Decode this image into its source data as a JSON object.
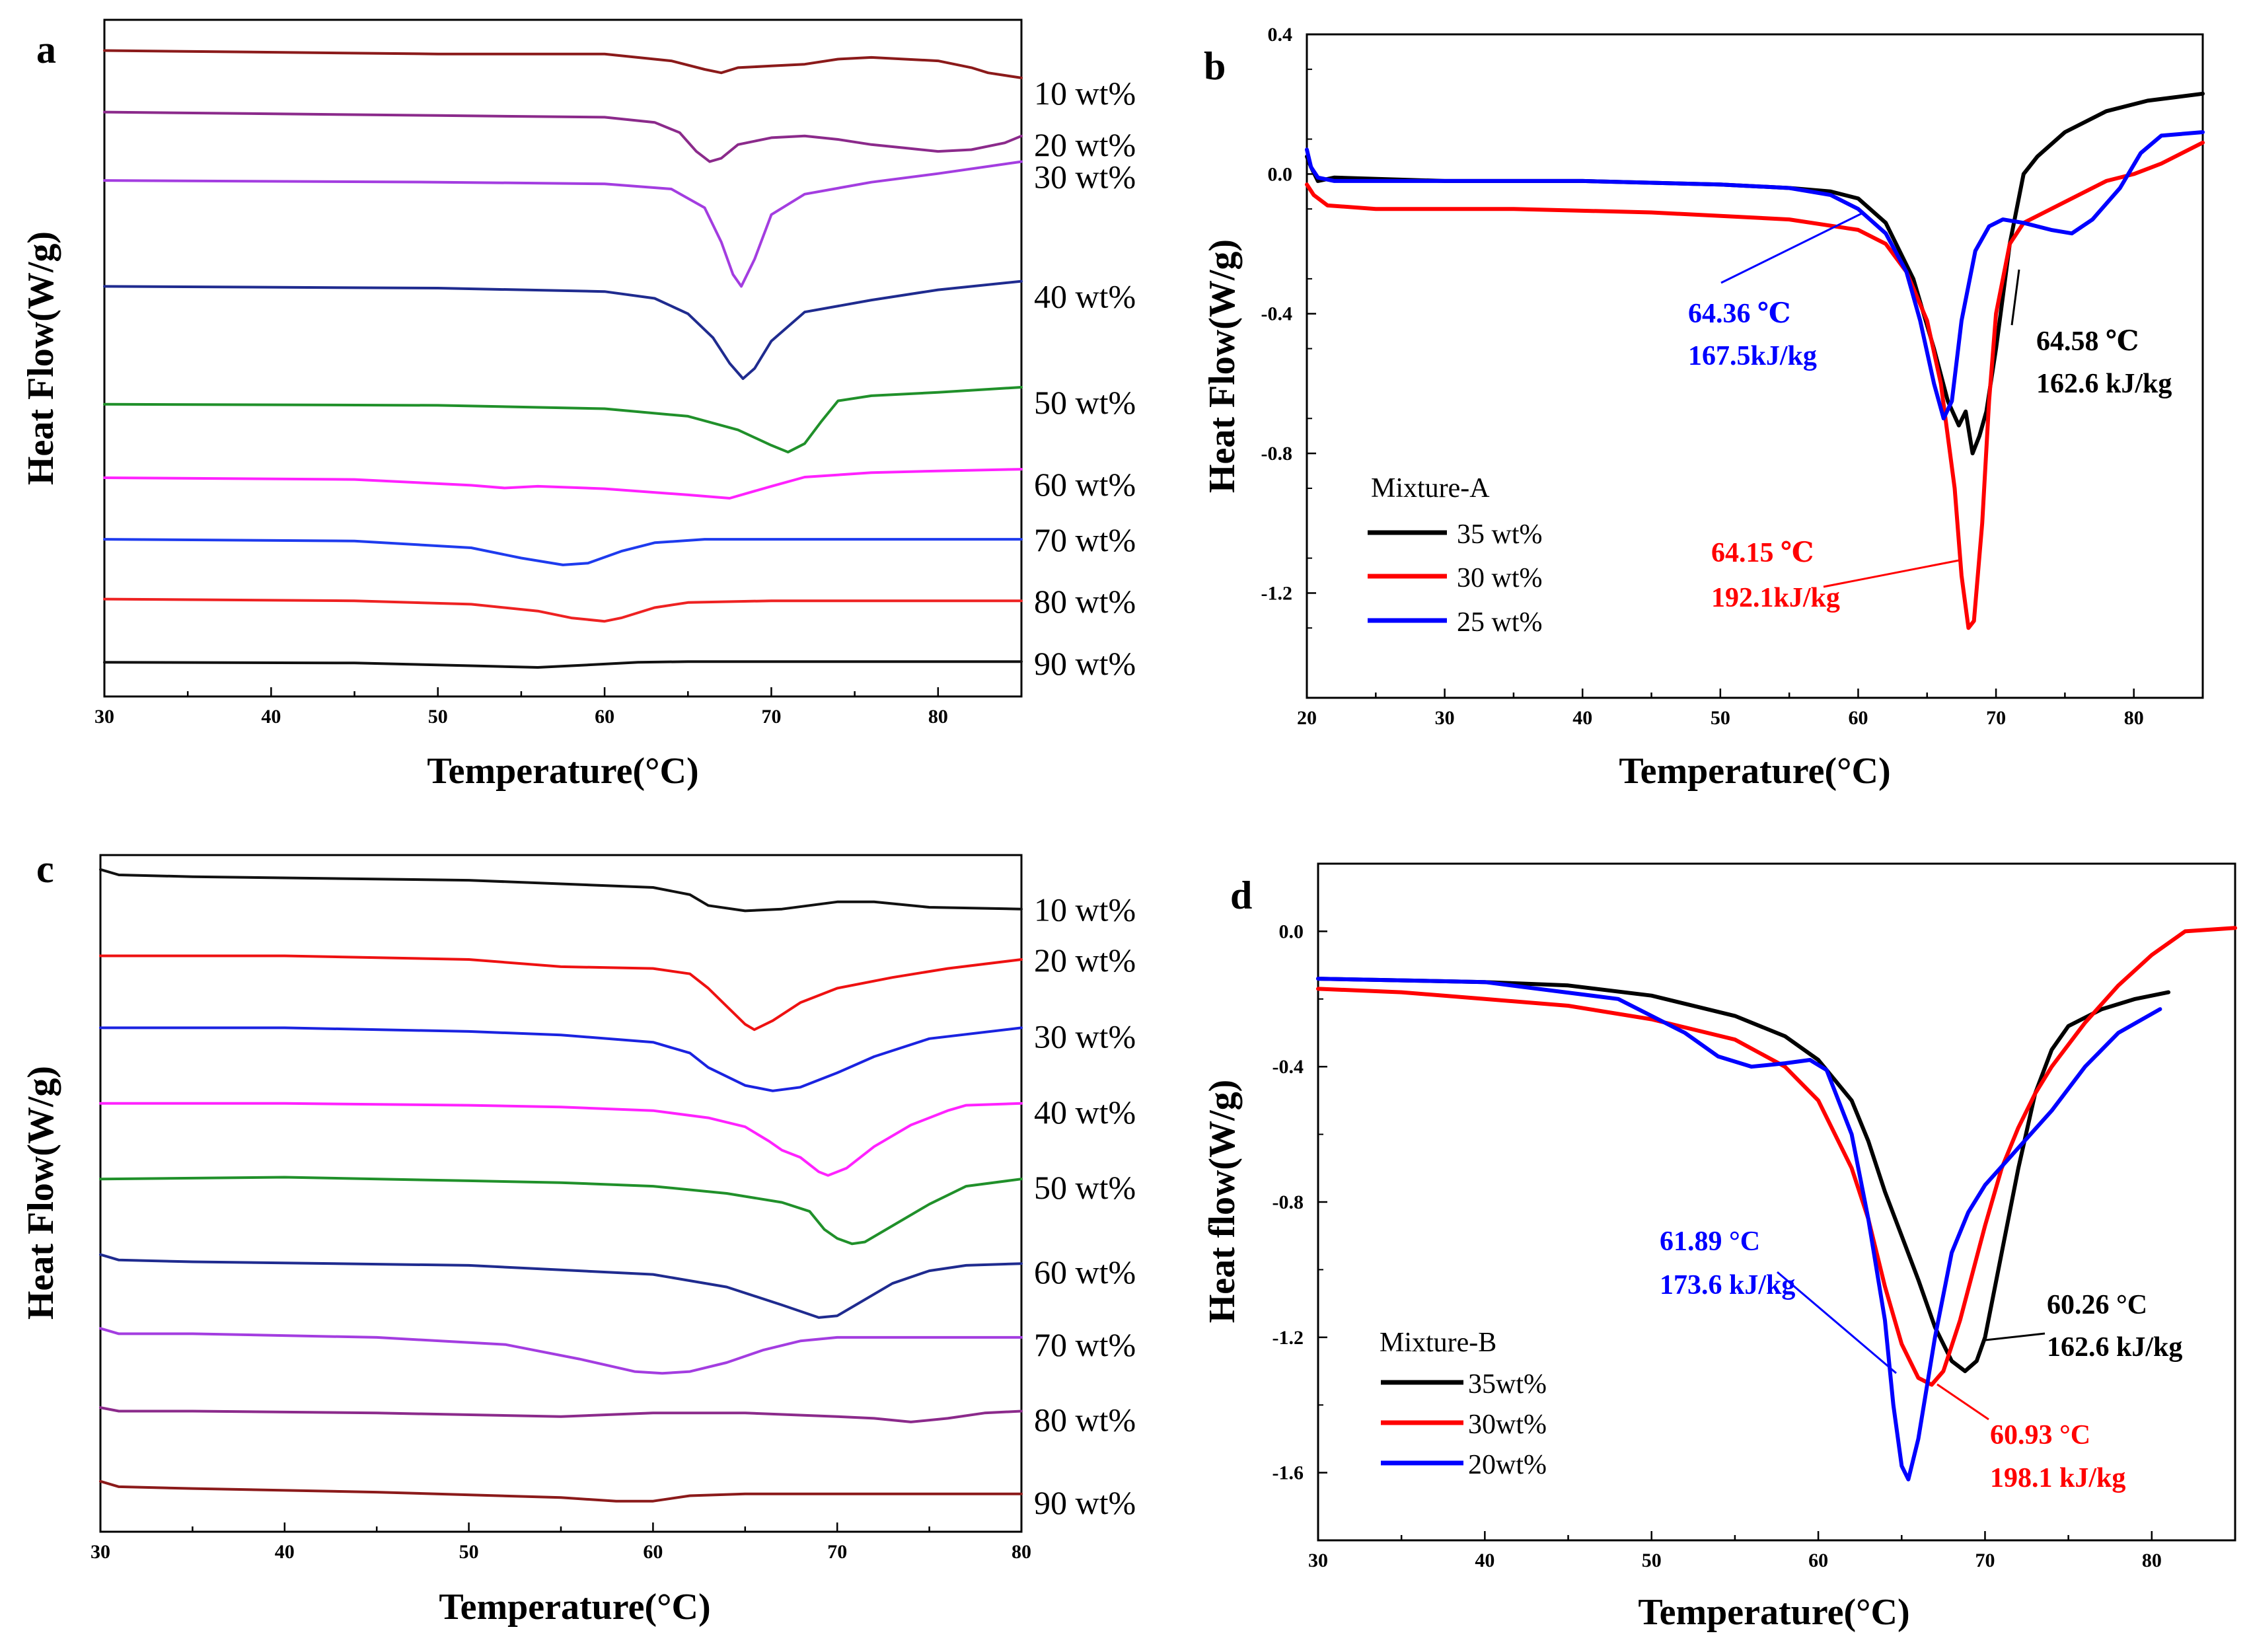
{
  "chart_data": [
    {
      "panel": "a",
      "type": "line",
      "xlabel": "Temperature(°C)",
      "ylabel": "Heat Flow(W/g)",
      "xlim": [
        30,
        85
      ],
      "xticks": [
        "30",
        "40",
        "50",
        "60",
        "70",
        "80"
      ],
      "series": [
        {
          "name": "10 wt%",
          "color": "#8B1A1A",
          "x": [
            30,
            50,
            60,
            64,
            66,
            67,
            68,
            70,
            72,
            74,
            76,
            80,
            82,
            83,
            85
          ],
          "y": [
            13.1,
            13.0,
            13.0,
            12.8,
            12.55,
            12.45,
            12.6,
            12.65,
            12.7,
            12.85,
            12.9,
            12.8,
            12.6,
            12.45,
            12.3
          ]
        },
        {
          "name": "20 wt%",
          "color": "#8B2A8B",
          "x": [
            30,
            50,
            60,
            63,
            64.5,
            65.5,
            66.3,
            67,
            68,
            70,
            72,
            74,
            76,
            78,
            80,
            82,
            84,
            85
          ],
          "y": [
            11.3,
            11.2,
            11.15,
            11.0,
            10.7,
            10.15,
            9.85,
            9.95,
            10.35,
            10.55,
            10.6,
            10.5,
            10.35,
            10.25,
            10.15,
            10.2,
            10.4,
            10.6
          ]
        },
        {
          "name": "30 wt%",
          "color": "#A33DE0",
          "x": [
            30,
            50,
            60,
            64,
            66,
            67,
            67.7,
            68.2,
            69,
            70,
            72,
            76,
            80,
            85
          ],
          "y": [
            9.3,
            9.25,
            9.2,
            9.05,
            8.5,
            7.5,
            6.55,
            6.2,
            7.0,
            8.3,
            8.9,
            9.25,
            9.5,
            9.85
          ]
        },
        {
          "name": "40 wt%",
          "color": "#1F2B8F",
          "x": [
            30,
            50,
            60,
            63,
            65,
            66.5,
            67.5,
            68.3,
            69,
            70,
            72,
            76,
            80,
            85
          ],
          "y": [
            6.2,
            6.15,
            6.05,
            5.85,
            5.4,
            4.7,
            3.95,
            3.5,
            3.8,
            4.6,
            5.45,
            5.8,
            6.1,
            6.35
          ]
        },
        {
          "name": "50 wt%",
          "color": "#20902A",
          "x": [
            30,
            50,
            60,
            65,
            68,
            70,
            71,
            72,
            73,
            74,
            76,
            80,
            85
          ],
          "y": [
            2.75,
            2.72,
            2.62,
            2.4,
            2.0,
            1.55,
            1.35,
            1.6,
            2.25,
            2.85,
            3.0,
            3.1,
            3.25
          ]
        },
        {
          "name": "60 wt%",
          "color": "#FF22FF",
          "x": [
            30,
            45,
            52,
            54,
            56,
            60,
            65,
            67.5,
            70,
            72,
            76,
            80,
            85
          ],
          "y": [
            0.6,
            0.55,
            0.38,
            0.3,
            0.35,
            0.28,
            0.1,
            0.0,
            0.35,
            0.62,
            0.75,
            0.8,
            0.85
          ]
        },
        {
          "name": "70 wt%",
          "color": "#1E3BEE",
          "x": [
            30,
            45,
            52,
            55,
            57.5,
            59,
            61,
            63,
            66,
            70,
            75,
            80,
            85
          ],
          "y": [
            -1.2,
            -1.25,
            -1.45,
            -1.75,
            -1.95,
            -1.9,
            -1.55,
            -1.3,
            -1.2,
            -1.2,
            -1.2,
            -1.2,
            -1.2
          ]
        },
        {
          "name": "80 wt%",
          "color": "#EE2222",
          "x": [
            30,
            45,
            52,
            56,
            58,
            60,
            61,
            63,
            65,
            70,
            75,
            80,
            85
          ],
          "y": [
            -2.95,
            -3.0,
            -3.1,
            -3.3,
            -3.5,
            -3.6,
            -3.5,
            -3.2,
            -3.05,
            -3.0,
            -3.0,
            -3.0,
            -3.0
          ]
        },
        {
          "name": "90 wt%",
          "color": "#111111",
          "x": [
            30,
            45,
            52,
            56,
            58,
            62,
            65,
            70,
            80,
            85
          ],
          "y": [
            -4.8,
            -4.82,
            -4.9,
            -4.95,
            -4.9,
            -4.8,
            -4.78,
            -4.78,
            -4.78,
            -4.78
          ]
        }
      ]
    },
    {
      "panel": "b",
      "type": "line",
      "xlabel": "Temperature(°C)",
      "ylabel": "Heat Flow(W/g)",
      "xlim": [
        20,
        85
      ],
      "ylim": [
        -1.5,
        0.4
      ],
      "xticks": [
        "20",
        "30",
        "40",
        "50",
        "60",
        "70",
        "80"
      ],
      "yticks": [
        "0.4",
        "0.0",
        "-0.4",
        "-0.8",
        "-1.2"
      ],
      "legend_title": "Mixture-A",
      "series": [
        {
          "name": "35 wt%",
          "color": "#000000",
          "x": [
            20,
            20.3,
            20.8,
            22,
            30,
            40,
            50,
            55,
            58,
            60,
            62,
            64,
            65.5,
            66.5,
            67.3,
            67.8,
            68.3,
            68.8,
            69.3,
            70,
            71,
            72,
            73,
            75,
            78,
            81,
            83,
            85
          ],
          "y": [
            0.05,
            0.02,
            -0.02,
            -0.01,
            -0.02,
            -0.02,
            -0.03,
            -0.04,
            -0.05,
            -0.07,
            -0.14,
            -0.3,
            -0.5,
            -0.65,
            -0.72,
            -0.68,
            -0.8,
            -0.75,
            -0.68,
            -0.5,
            -0.2,
            0.0,
            0.05,
            0.12,
            0.18,
            0.21,
            0.22,
            0.23
          ]
        },
        {
          "name": "30 wt%",
          "color": "#FF0000",
          "x": [
            20,
            20.5,
            21.5,
            25,
            35,
            45,
            55,
            60,
            62,
            63.5,
            65,
            66,
            67,
            67.5,
            68,
            68.4,
            69,
            69.5,
            70,
            71,
            72,
            74,
            76,
            78,
            80,
            82,
            85
          ],
          "y": [
            -0.03,
            -0.06,
            -0.09,
            -0.1,
            -0.1,
            -0.11,
            -0.13,
            -0.16,
            -0.2,
            -0.28,
            -0.42,
            -0.6,
            -0.9,
            -1.15,
            -1.3,
            -1.28,
            -1.0,
            -0.65,
            -0.4,
            -0.2,
            -0.14,
            -0.1,
            -0.06,
            -0.02,
            0.0,
            0.03,
            0.09
          ]
        },
        {
          "name": "25 wt%",
          "color": "#0000FF",
          "x": [
            20,
            20.3,
            20.8,
            22,
            30,
            40,
            50,
            55,
            58,
            60,
            62,
            63.5,
            64.5,
            65.5,
            66.2,
            66.8,
            67.5,
            68.5,
            69.5,
            70.5,
            72,
            74,
            75.5,
            77,
            79,
            80.5,
            82,
            85
          ],
          "y": [
            0.07,
            0.02,
            -0.01,
            -0.02,
            -0.02,
            -0.02,
            -0.03,
            -0.04,
            -0.06,
            -0.1,
            -0.17,
            -0.28,
            -0.42,
            -0.6,
            -0.7,
            -0.65,
            -0.42,
            -0.22,
            -0.15,
            -0.13,
            -0.14,
            -0.16,
            -0.17,
            -0.13,
            -0.04,
            0.06,
            0.11,
            0.12
          ]
        }
      ],
      "annotations": [
        {
          "text1": "64.36 ℃",
          "text2": "167.5kJ/kg",
          "color": "#0000FF"
        },
        {
          "text1": "64.58 ℃",
          "text2": "162.6 kJ/kg",
          "color": "#000000"
        },
        {
          "text1": "64.15 ℃",
          "text2": "192.1kJ/kg",
          "color": "#FF0000"
        }
      ]
    },
    {
      "panel": "c",
      "type": "line",
      "xlabel": "Temperature(°C)",
      "ylabel": "Heat Flow(W/g)",
      "xlim": [
        30,
        80
      ],
      "xticks": [
        "30",
        "40",
        "50",
        "60",
        "70",
        "80"
      ],
      "series": [
        {
          "name": "10 wt%",
          "color": "#111111",
          "x": [
            30,
            31,
            35,
            50,
            60,
            62,
            63,
            65,
            67,
            70,
            72,
            75,
            80
          ],
          "y": [
            13.6,
            13.45,
            13.4,
            13.3,
            13.1,
            12.9,
            12.6,
            12.45,
            12.5,
            12.7,
            12.7,
            12.55,
            12.5
          ]
        },
        {
          "name": "20 wt%",
          "color": "#EE1111",
          "x": [
            30,
            40,
            50,
            55,
            60,
            62,
            63,
            64,
            65,
            65.5,
            66.5,
            68,
            70,
            73,
            76,
            80
          ],
          "y": [
            11.2,
            11.2,
            11.1,
            10.9,
            10.85,
            10.7,
            10.3,
            9.8,
            9.3,
            9.15,
            9.4,
            9.9,
            10.3,
            10.6,
            10.85,
            11.1
          ]
        },
        {
          "name": "30 wt%",
          "color": "#1A23E0",
          "x": [
            30,
            40,
            50,
            55,
            60,
            62,
            63,
            65,
            66.5,
            68,
            70,
            72,
            75,
            80
          ],
          "y": [
            9.2,
            9.2,
            9.1,
            9.0,
            8.8,
            8.5,
            8.1,
            7.6,
            7.45,
            7.55,
            7.95,
            8.4,
            8.9,
            9.2
          ]
        },
        {
          "name": "40 wt%",
          "color": "#FF22FF",
          "x": [
            30,
            40,
            50,
            55,
            60,
            63,
            65,
            66.3,
            67,
            68,
            69,
            69.5,
            70.5,
            72,
            74,
            76,
            77,
            80
          ],
          "y": [
            7.1,
            7.1,
            7.05,
            7.0,
            6.9,
            6.7,
            6.45,
            6.05,
            5.8,
            5.6,
            5.2,
            5.1,
            5.3,
            5.9,
            6.5,
            6.9,
            7.05,
            7.1
          ]
        },
        {
          "name": "50 wt%",
          "color": "#20902A",
          "x": [
            30,
            40,
            50,
            55,
            60,
            64,
            67,
            68.5,
            69.3,
            70,
            70.8,
            71.5,
            73,
            75,
            77,
            80
          ],
          "y": [
            5.0,
            5.05,
            4.95,
            4.9,
            4.8,
            4.6,
            4.35,
            4.1,
            3.6,
            3.35,
            3.2,
            3.25,
            3.7,
            4.3,
            4.8,
            5.0
          ]
        },
        {
          "name": "60 wt%",
          "color": "#1F2B8F",
          "x": [
            30,
            31,
            35,
            50,
            60,
            64,
            67,
            69,
            70,
            71,
            73,
            75,
            77,
            80
          ],
          "y": [
            2.9,
            2.75,
            2.7,
            2.6,
            2.35,
            2.0,
            1.5,
            1.15,
            1.2,
            1.5,
            2.1,
            2.45,
            2.6,
            2.65
          ]
        },
        {
          "name": "70 wt%",
          "color": "#A33DE0",
          "x": [
            30,
            31,
            35,
            45,
            52,
            56,
            59,
            60.5,
            62,
            64,
            66,
            68,
            70,
            75,
            80
          ],
          "y": [
            0.85,
            0.7,
            0.7,
            0.6,
            0.4,
            0.0,
            -0.35,
            -0.4,
            -0.35,
            -0.1,
            0.25,
            0.5,
            0.6,
            0.6,
            0.6
          ]
        },
        {
          "name": "80 wt%",
          "color": "#8B2A8B",
          "x": [
            30,
            31,
            35,
            45,
            55,
            60,
            65,
            70,
            72,
            74,
            76,
            78,
            80
          ],
          "y": [
            -1.35,
            -1.45,
            -1.45,
            -1.5,
            -1.6,
            -1.5,
            -1.5,
            -1.6,
            -1.65,
            -1.75,
            -1.65,
            -1.5,
            -1.45
          ]
        },
        {
          "name": "90 wt%",
          "color": "#8B1A1A",
          "x": [
            30,
            31,
            35,
            45,
            55,
            58,
            60,
            62,
            65,
            70,
            75,
            80
          ],
          "y": [
            -3.4,
            -3.55,
            -3.6,
            -3.7,
            -3.85,
            -3.95,
            -3.95,
            -3.8,
            -3.75,
            -3.75,
            -3.75,
            -3.75
          ]
        }
      ]
    },
    {
      "panel": "d",
      "type": "line",
      "xlabel": "Temperature(°C)",
      "ylabel": "Heat flow(W/g)",
      "xlim": [
        30,
        85
      ],
      "ylim": [
        -1.8,
        0.2
      ],
      "xticks": [
        "30",
        "40",
        "50",
        "60",
        "70",
        "80"
      ],
      "yticks": [
        "0.0",
        "-0.4",
        "-0.8",
        "-1.2",
        "-1.6"
      ],
      "legend_title": "Mixture-B",
      "series": [
        {
          "name": "35wt%",
          "color": "#000000",
          "x": [
            30,
            40,
            45,
            50,
            55,
            58,
            60,
            62,
            63,
            64,
            65,
            66,
            67,
            68,
            68.8,
            69.5,
            70,
            71,
            72,
            73,
            74,
            75,
            77,
            79,
            81
          ],
          "y": [
            -0.14,
            -0.15,
            -0.16,
            -0.19,
            -0.25,
            -0.31,
            -0.38,
            -0.5,
            -0.62,
            -0.77,
            -0.9,
            -1.03,
            -1.17,
            -1.27,
            -1.3,
            -1.27,
            -1.2,
            -0.95,
            -0.7,
            -0.48,
            -0.35,
            -0.28,
            -0.23,
            -0.2,
            -0.18
          ]
        },
        {
          "name": "30wt%",
          "color": "#FF0000",
          "x": [
            30,
            35,
            40,
            45,
            50,
            55,
            58,
            60,
            62,
            63,
            64,
            65,
            66,
            66.8,
            67.5,
            68.5,
            70,
            71,
            72,
            73,
            74,
            76,
            78,
            80,
            82,
            85
          ],
          "y": [
            -0.17,
            -0.18,
            -0.2,
            -0.22,
            -0.26,
            -0.32,
            -0.4,
            -0.5,
            -0.7,
            -0.85,
            -1.05,
            -1.22,
            -1.32,
            -1.34,
            -1.3,
            -1.15,
            -0.87,
            -0.7,
            -0.58,
            -0.48,
            -0.4,
            -0.27,
            -0.16,
            -0.07,
            0.0,
            0.01
          ]
        },
        {
          "name": "20wt%",
          "color": "#0000FF",
          "x": [
            30,
            40,
            48,
            52,
            54,
            56,
            58,
            59.5,
            60.5,
            62,
            63,
            64,
            64.5,
            65,
            65.4,
            66,
            67,
            68,
            69,
            70,
            72,
            74,
            76,
            78,
            80.5
          ],
          "y": [
            -0.14,
            -0.15,
            -0.2,
            -0.3,
            -0.37,
            -0.4,
            -0.39,
            -0.38,
            -0.41,
            -0.6,
            -0.85,
            -1.15,
            -1.4,
            -1.58,
            -1.62,
            -1.5,
            -1.2,
            -0.95,
            -0.83,
            -0.75,
            -0.64,
            -0.53,
            -0.4,
            -0.3,
            -0.23
          ]
        }
      ],
      "annotations": [
        {
          "text1": "61.89 °C",
          "text2": "173.6 kJ/kg",
          "color": "#0000FF"
        },
        {
          "text1": "60.26 °C",
          "text2": "162.6 kJ/kg",
          "color": "#000000"
        },
        {
          "text1": "60.93 °C",
          "text2": "198.1 kJ/kg",
          "color": "#FF0000"
        }
      ]
    }
  ]
}
